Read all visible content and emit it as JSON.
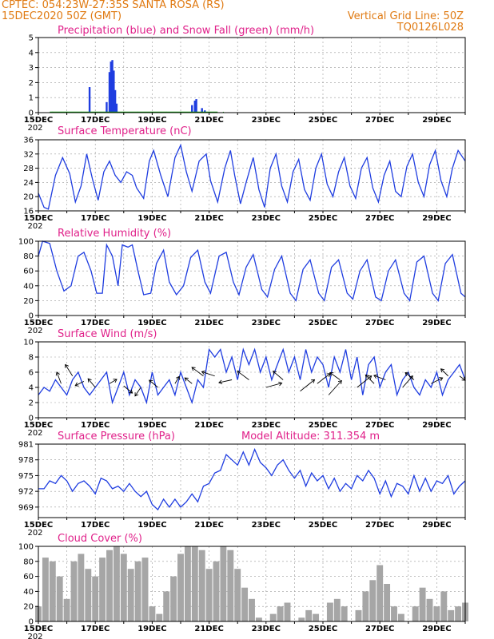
{
  "header": {
    "line1_left": "CPTEC:   054:23W-27:35S   SANTA ROSA (RS)",
    "line2_left": "15DEC2020 50Z (GMT)",
    "line1_right": "Vertical Grid Line: 50Z",
    "line2_right": "TQ0126L028"
  },
  "colors": {
    "header": "#e07a12",
    "title": "#e0218a",
    "line": "#1f3de0",
    "precip": "#1f3de0",
    "snow": "#10a010",
    "cloud": "#a6a6a6",
    "arrow": "#000000"
  },
  "chart_data": [
    {
      "id": "precip",
      "type": "bar",
      "title": "Precipitation (blue) and Snow Fall (green) (mm/h)",
      "ylim": [
        0,
        5
      ],
      "yticks": [
        0,
        1,
        2,
        3,
        4,
        5
      ],
      "series": [
        {
          "name": "Precipitation",
          "x": [
            16.8,
            17.4,
            17.5,
            17.55,
            17.6,
            17.65,
            17.7,
            17.75,
            20.4,
            20.5,
            20.55,
            20.75,
            20.85
          ],
          "values": [
            1.7,
            0.7,
            2.7,
            3.4,
            3.5,
            2.8,
            1.5,
            0.6,
            0.5,
            0.8,
            0.9,
            0.3,
            0.15
          ]
        },
        {
          "name": "Snow Fall",
          "x": [
            15.5,
            16.0,
            16.5,
            17.0,
            18.0,
            18.5,
            19.0,
            19.5,
            20.0,
            21.0,
            21.5
          ],
          "values": [
            0,
            0,
            0,
            0,
            0,
            0,
            0,
            0,
            0,
            0,
            0
          ]
        }
      ]
    },
    {
      "id": "temp",
      "type": "line",
      "title": "Surface Temperature (nC)",
      "ylim": [
        16,
        36
      ],
      "yticks": [
        16,
        20,
        24,
        28,
        32,
        36
      ],
      "series": [
        {
          "name": "",
          "x": [
            15.0,
            15.2,
            15.35,
            15.6,
            15.85,
            16.1,
            16.3,
            16.5,
            16.7,
            16.9,
            17.1,
            17.3,
            17.5,
            17.7,
            17.9,
            18.1,
            18.3,
            18.45,
            18.7,
            18.9,
            19.05,
            19.3,
            19.55,
            19.8,
            20.0,
            20.2,
            20.4,
            20.65,
            20.9,
            21.05,
            21.3,
            21.55,
            21.75,
            21.9,
            22.1,
            22.3,
            22.55,
            22.75,
            22.95,
            23.15,
            23.35,
            23.55,
            23.75,
            23.95,
            24.15,
            24.35,
            24.55,
            24.75,
            24.95,
            25.15,
            25.35,
            25.55,
            25.75,
            25.95,
            26.15,
            26.35,
            26.55,
            26.75,
            26.95,
            27.15,
            27.35,
            27.55,
            27.75,
            27.95,
            28.15,
            28.35,
            28.55,
            28.75,
            28.95,
            29.15,
            29.35,
            29.55,
            29.75,
            30.0
          ],
          "values": [
            21,
            17,
            16.5,
            26,
            31,
            26.5,
            18.5,
            23,
            32,
            25,
            19,
            27,
            30,
            26,
            24,
            27,
            26,
            22.5,
            19.5,
            30,
            33,
            26,
            20,
            31,
            34.5,
            27,
            21.5,
            30,
            32,
            24.5,
            18.5,
            28,
            33,
            26,
            18,
            24,
            31,
            22,
            17,
            28,
            32,
            23,
            18.5,
            27,
            30.5,
            22,
            19,
            28,
            32,
            23.5,
            20,
            27,
            31,
            23,
            19.5,
            28,
            31,
            22.5,
            18.5,
            26,
            30,
            21.5,
            20,
            28.5,
            32,
            24,
            20,
            29,
            33,
            24.5,
            20,
            28,
            33,
            30
          ]
        }
      ]
    },
    {
      "id": "rh",
      "type": "line",
      "title": "Relative Humidity (%)",
      "ylim": [
        0,
        100
      ],
      "yticks": [
        0,
        20,
        40,
        60,
        80,
        100
      ],
      "series": [
        {
          "name": "",
          "x": [
            15.0,
            15.15,
            15.4,
            15.65,
            15.9,
            16.15,
            16.4,
            16.6,
            16.85,
            17.05,
            17.25,
            17.4,
            17.6,
            17.8,
            17.95,
            18.15,
            18.3,
            18.5,
            18.7,
            18.95,
            19.15,
            19.4,
            19.6,
            19.85,
            20.1,
            20.35,
            20.6,
            20.85,
            21.05,
            21.35,
            21.6,
            21.85,
            22.05,
            22.3,
            22.55,
            22.85,
            23.05,
            23.3,
            23.55,
            23.85,
            24.05,
            24.3,
            24.55,
            24.85,
            25.05,
            25.3,
            25.55,
            25.85,
            26.05,
            26.3,
            26.55,
            26.85,
            27.05,
            27.3,
            27.55,
            27.85,
            28.05,
            28.3,
            28.55,
            28.85,
            29.05,
            29.3,
            29.55,
            29.85,
            30.0
          ],
          "values": [
            80,
            100,
            97,
            60,
            33,
            40,
            80,
            85,
            60,
            30,
            30,
            95,
            80,
            40,
            95,
            92,
            95,
            60,
            28,
            30,
            70,
            88,
            45,
            28,
            40,
            78,
            88,
            45,
            30,
            80,
            85,
            45,
            28,
            65,
            82,
            35,
            25,
            62,
            80,
            30,
            20,
            62,
            75,
            30,
            20,
            65,
            75,
            30,
            22,
            60,
            75,
            25,
            20,
            60,
            75,
            30,
            20,
            72,
            80,
            30,
            20,
            70,
            82,
            30,
            25
          ]
        }
      ]
    },
    {
      "id": "wind",
      "type": "line",
      "title": "Surface Wind (m/s)",
      "ylim": [
        0,
        10
      ],
      "yticks": [
        0,
        2,
        4,
        6,
        8,
        10
      ],
      "series": [
        {
          "name": "",
          "x": [
            15.0,
            15.2,
            15.4,
            15.6,
            15.8,
            16.0,
            16.2,
            16.4,
            16.6,
            16.8,
            17.0,
            17.2,
            17.4,
            17.6,
            17.8,
            18.0,
            18.2,
            18.4,
            18.6,
            18.8,
            19.0,
            19.2,
            19.4,
            19.6,
            19.8,
            20.0,
            20.2,
            20.4,
            20.6,
            20.8,
            21.0,
            21.2,
            21.4,
            21.6,
            21.8,
            22.0,
            22.2,
            22.4,
            22.6,
            22.8,
            23.0,
            23.2,
            23.4,
            23.6,
            23.8,
            24.0,
            24.2,
            24.4,
            24.6,
            24.8,
            25.0,
            25.2,
            25.4,
            25.6,
            25.8,
            26.0,
            26.2,
            26.4,
            26.6,
            26.8,
            27.0,
            27.2,
            27.4,
            27.6,
            27.8,
            28.0,
            28.2,
            28.4,
            28.6,
            28.8,
            29.0,
            29.2,
            29.4,
            29.6,
            29.8,
            30.0
          ],
          "values": [
            3,
            4,
            3.5,
            5,
            4,
            3,
            5,
            6,
            4,
            3,
            4,
            5,
            6,
            2,
            4,
            6,
            3,
            5,
            4,
            2,
            6,
            3,
            4,
            5,
            3,
            6,
            4,
            2,
            5,
            4,
            9,
            8,
            9,
            6,
            8,
            5,
            9,
            7,
            9,
            6,
            8,
            5,
            7,
            9,
            6,
            8,
            5,
            9,
            6,
            8,
            7,
            4,
            8,
            6,
            9,
            5,
            8,
            3,
            7,
            8,
            4,
            6,
            7,
            3,
            5,
            6,
            4,
            3,
            5,
            4,
            6,
            3,
            5,
            6,
            7,
            5
          ]
        }
      ],
      "vectors": [
        {
          "x": 15.8,
          "v": 4.5,
          "u": -0.3,
          "w": 0.8
        },
        {
          "x": 16.2,
          "v": 5.5,
          "u": -0.5,
          "w": 0.8
        },
        {
          "x": 16.6,
          "v": 4.8,
          "u": -0.6,
          "w": -0.3
        },
        {
          "x": 17.0,
          "v": 4.0,
          "u": -0.5,
          "w": 0.6
        },
        {
          "x": 17.5,
          "v": 4.5,
          "u": 0.5,
          "w": 0.3
        },
        {
          "x": 18.0,
          "v": 4.2,
          "u": 0.6,
          "w": -0.5
        },
        {
          "x": 18.6,
          "v": 4.0,
          "u": -0.4,
          "w": -0.6
        },
        {
          "x": 19.2,
          "v": 4.0,
          "u": -0.6,
          "w": 0.5
        },
        {
          "x": 19.8,
          "v": 4.5,
          "u": 0.3,
          "w": 0.5
        },
        {
          "x": 20.4,
          "v": 4.5,
          "u": -0.5,
          "w": 0.4
        },
        {
          "x": 20.8,
          "v": 5.5,
          "u": -0.8,
          "w": 0.6
        },
        {
          "x": 21.2,
          "v": 5.5,
          "u": -0.9,
          "w": 0.3
        },
        {
          "x": 21.8,
          "v": 5.0,
          "u": -0.9,
          "w": -0.2
        },
        {
          "x": 22.4,
          "v": 5.0,
          "u": -0.8,
          "w": 0.6
        },
        {
          "x": 23.0,
          "v": 4.0,
          "u": 1.1,
          "w": 0.3
        },
        {
          "x": 23.6,
          "v": 5.0,
          "u": -0.7,
          "w": 0.6
        },
        {
          "x": 24.2,
          "v": 3.5,
          "u": 1.0,
          "w": 0.8
        },
        {
          "x": 24.8,
          "v": 4.5,
          "u": 0.9,
          "w": 0.7
        },
        {
          "x": 25.2,
          "v": 3.0,
          "u": 0.9,
          "w": 1.0
        },
        {
          "x": 25.6,
          "v": 5.0,
          "u": -0.7,
          "w": 0.5
        },
        {
          "x": 26.2,
          "v": 4.0,
          "u": 1.0,
          "w": 0.8
        },
        {
          "x": 26.8,
          "v": 4.5,
          "u": -0.6,
          "w": 0.6
        },
        {
          "x": 27.2,
          "v": 5.0,
          "u": -0.8,
          "w": 0.3
        },
        {
          "x": 27.8,
          "v": 4.0,
          "u": 0.7,
          "w": 0.8
        },
        {
          "x": 28.2,
          "v": 5.0,
          "u": -0.6,
          "w": 0.5
        },
        {
          "x": 28.8,
          "v": 4.5,
          "u": 0.8,
          "w": 0.4
        },
        {
          "x": 29.4,
          "v": 5.5,
          "u": -0.5,
          "w": 0.5
        },
        {
          "x": 29.8,
          "v": 5.5,
          "u": 0.4,
          "w": -0.3
        }
      ]
    },
    {
      "id": "press",
      "type": "line",
      "title": "Surface Pressure (hPa)",
      "subtitle": "Model Altitude: 311.354 m",
      "ylim": [
        967,
        981
      ],
      "yticks": [
        969,
        972,
        975,
        978,
        981
      ],
      "series": [
        {
          "name": "",
          "x": [
            15.0,
            15.2,
            15.4,
            15.6,
            15.8,
            16.0,
            16.2,
            16.4,
            16.6,
            16.8,
            17.0,
            17.2,
            17.4,
            17.6,
            17.8,
            18.0,
            18.2,
            18.4,
            18.6,
            18.8,
            19.0,
            19.2,
            19.4,
            19.6,
            19.8,
            20.0,
            20.2,
            20.4,
            20.6,
            20.8,
            21.0,
            21.2,
            21.4,
            21.6,
            21.8,
            22.0,
            22.2,
            22.4,
            22.6,
            22.8,
            23.0,
            23.2,
            23.4,
            23.6,
            23.8,
            24.0,
            24.2,
            24.4,
            24.6,
            24.8,
            25.0,
            25.2,
            25.4,
            25.6,
            25.8,
            26.0,
            26.2,
            26.4,
            26.6,
            26.8,
            27.0,
            27.2,
            27.4,
            27.6,
            27.8,
            28.0,
            28.2,
            28.4,
            28.6,
            28.8,
            29.0,
            29.2,
            29.4,
            29.6,
            29.8,
            30.0
          ],
          "values": [
            972.5,
            972.5,
            974,
            973.5,
            975,
            974,
            972,
            973.5,
            974,
            973,
            971.5,
            974.5,
            974,
            972.5,
            973,
            972,
            973.5,
            972,
            971,
            972,
            969.5,
            968.5,
            970.5,
            969,
            970.5,
            969,
            970,
            971.5,
            970,
            973,
            973.5,
            975.5,
            976,
            979,
            978,
            977,
            979.5,
            977,
            980,
            977.5,
            976.5,
            975,
            977,
            978,
            976,
            974.5,
            976,
            973,
            975.5,
            974,
            975,
            972.5,
            974.5,
            972,
            973.5,
            972.5,
            975,
            974,
            976,
            974.5,
            971.5,
            974,
            971,
            973.5,
            973,
            971.5,
            975,
            972,
            974.5,
            972,
            974,
            973.5,
            975,
            971.5,
            973,
            974
          ]
        }
      ]
    },
    {
      "id": "cloud",
      "type": "bar",
      "title": "Cloud Cover (%)",
      "ylim": [
        0,
        100
      ],
      "yticks": [
        0,
        20,
        40,
        60,
        80,
        100
      ],
      "series": [
        {
          "name": "",
          "x": [
            15.0,
            15.25,
            15.5,
            15.75,
            16.0,
            16.25,
            16.5,
            16.75,
            17.0,
            17.25,
            17.5,
            17.75,
            18.0,
            18.25,
            18.5,
            18.75,
            19.0,
            19.25,
            19.5,
            19.75,
            20.0,
            20.25,
            20.5,
            20.75,
            21.0,
            21.25,
            21.5,
            21.75,
            22.0,
            22.25,
            22.5,
            22.75,
            23.0,
            23.25,
            23.5,
            23.75,
            24.0,
            24.25,
            24.5,
            24.75,
            25.0,
            25.25,
            25.5,
            25.75,
            26.0,
            26.25,
            26.5,
            26.75,
            27.0,
            27.25,
            27.5,
            27.75,
            28.0,
            28.25,
            28.5,
            28.75,
            29.0,
            29.25,
            29.5,
            29.75,
            30.0
          ],
          "values": [
            20,
            85,
            80,
            60,
            30,
            80,
            90,
            70,
            60,
            85,
            95,
            100,
            90,
            70,
            80,
            85,
            20,
            10,
            40,
            60,
            90,
            100,
            100,
            95,
            70,
            80,
            100,
            95,
            70,
            45,
            30,
            5,
            0,
            10,
            20,
            25,
            0,
            5,
            15,
            10,
            0,
            25,
            30,
            20,
            0,
            15,
            40,
            55,
            75,
            50,
            20,
            10,
            0,
            20,
            45,
            30,
            20,
            40,
            15,
            20,
            25
          ]
        }
      ]
    }
  ],
  "x_axis": {
    "ticks": [
      15,
      17,
      19,
      21,
      23,
      25,
      27,
      29
    ],
    "labels": [
      "15DEC",
      "17DEC",
      "19DEC",
      "21DEC",
      "23DEC",
      "25DEC",
      "27DEC",
      "29DEC"
    ],
    "year_label": "202",
    "xlim": [
      15,
      30
    ]
  }
}
